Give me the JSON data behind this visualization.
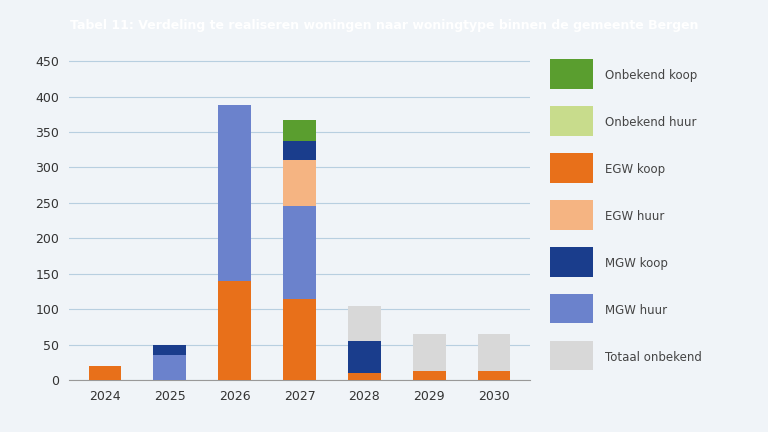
{
  "years": [
    "2024",
    "2025",
    "2026",
    "2027",
    "2028",
    "2029",
    "2030"
  ],
  "series": {
    "EGW koop": {
      "values": [
        20,
        0,
        140,
        115,
        10,
        13,
        13
      ],
      "color": "#e8701a"
    },
    "MGW huur": {
      "values": [
        0,
        35,
        248,
        130,
        0,
        0,
        0
      ],
      "color": "#6b82cc"
    },
    "EGW huur": {
      "values": [
        0,
        0,
        0,
        65,
        0,
        0,
        0
      ],
      "color": "#f5b482"
    },
    "MGW koop": {
      "values": [
        0,
        15,
        0,
        27,
        45,
        0,
        0
      ],
      "color": "#1a3d8c"
    },
    "Onbekend koop": {
      "values": [
        0,
        0,
        0,
        30,
        0,
        0,
        0
      ],
      "color": "#5a9e2f"
    },
    "Onbekend huur": {
      "values": [
        0,
        0,
        0,
        0,
        0,
        0,
        0
      ],
      "color": "#c8dc8c"
    },
    "Totaal onbekend": {
      "values": [
        0,
        0,
        0,
        0,
        50,
        52,
        52
      ],
      "color": "#d8d8d8"
    }
  },
  "legend_order": [
    "Onbekend koop",
    "Onbekend huur",
    "EGW koop",
    "EGW huur",
    "MGW koop",
    "MGW huur",
    "Totaal onbekend"
  ],
  "title": "Tabel 11: Verdeling te realiseren woningen naar woningtype binnen de gemeente Bergen",
  "title_bg_color": "#1f5fa6",
  "title_text_color": "#ffffff",
  "bg_color": "#f0f4f8",
  "plot_bg_color": "#f0f4f8",
  "grid_color": "#b8cfe0",
  "ylim": [
    0,
    460
  ],
  "yticks": [
    0,
    50,
    100,
    150,
    200,
    250,
    300,
    350,
    400,
    450
  ],
  "bar_width": 0.5
}
